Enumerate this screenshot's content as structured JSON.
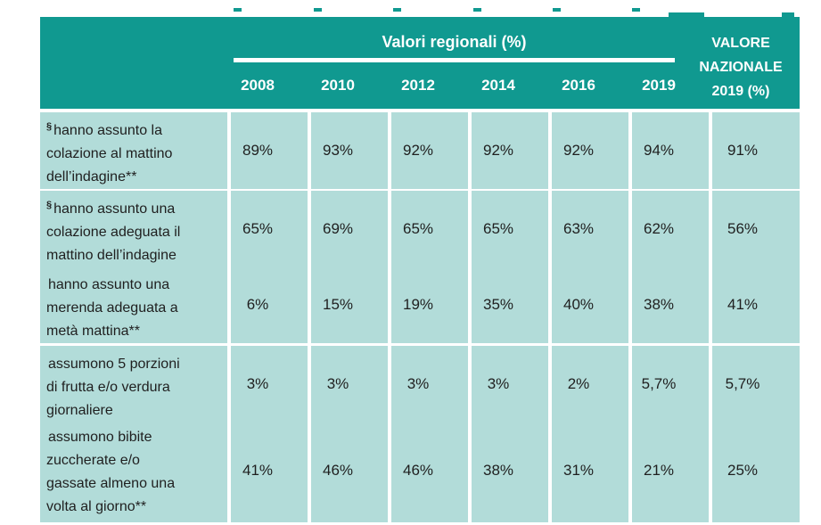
{
  "table": {
    "group_header": "Valori regionali (%)",
    "year_columns": [
      "2008",
      "2010",
      "2012",
      "2014",
      "2016",
      "2019"
    ],
    "national_header_lines": [
      "VALORE",
      "NAZIONALE",
      "2019 (%)"
    ],
    "rows": [
      {
        "marker": "§",
        "label_lines": [
          "hanno assunto la",
          "colazione al mattino",
          "dell’indagine**"
        ],
        "values": [
          "89%",
          "93%",
          "92%",
          "92%",
          "92%",
          "94%"
        ],
        "national": "91%"
      },
      {
        "marker": "§",
        "label_lines": [
          "hanno assunto una",
          "colazione adeguata il",
          "mattino dell’indagine"
        ],
        "values": [
          "65%",
          "69%",
          "65%",
          "65%",
          "63%",
          "62%"
        ],
        "national": "56%"
      },
      {
        "marker": "",
        "label_lines": [
          "hanno assunto una",
          "merenda adeguata a",
          "metà mattina**"
        ],
        "values": [
          "6%",
          "15%",
          "19%",
          "35%",
          "40%",
          "38%"
        ],
        "national": "41%"
      },
      {
        "marker": "",
        "label_lines": [
          "assumono 5 porzioni",
          "di frutta e/o verdura",
          "giornaliere"
        ],
        "values": [
          "3%",
          "3%",
          "3%",
          "3%",
          "2%",
          "5,7%"
        ],
        "national": "5,7%"
      },
      {
        "marker": "",
        "label_lines": [
          "assumono bibite",
          "zuccherate e/o",
          "gassate almeno una",
          "volta al giorno**"
        ],
        "values": [
          "41%",
          "46%",
          "46%",
          "38%",
          "31%",
          "21%"
        ],
        "national": "25%"
      }
    ],
    "colors": {
      "header_teal": "#109990",
      "cell_teal": "#b2dcd9",
      "header_text": "#ffffff",
      "body_text": "#1f1f1f",
      "page_background": "#ffffff"
    }
  }
}
